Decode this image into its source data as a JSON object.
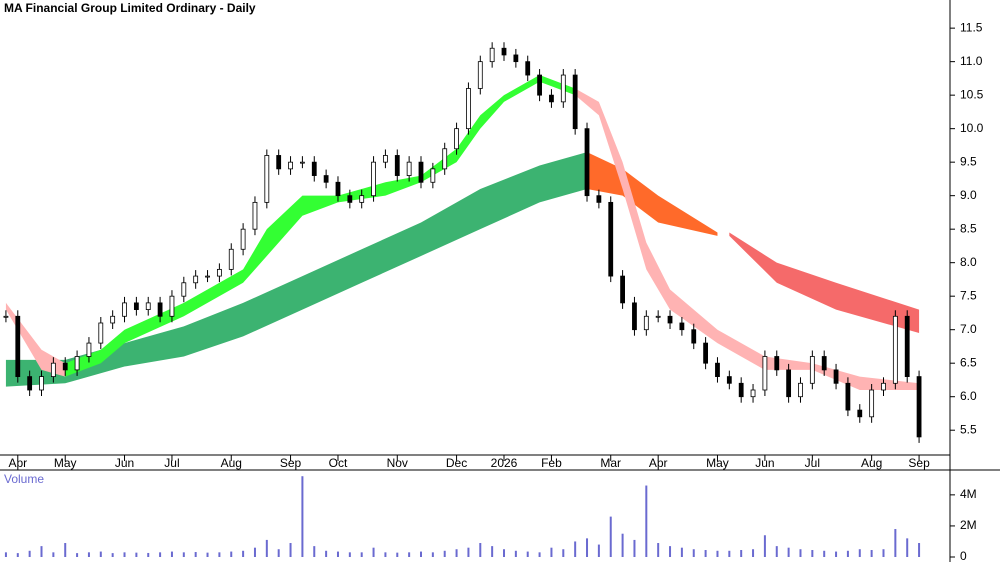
{
  "chart_data": [
    {
      "type": "price",
      "title": "MA Financial Group Limited Ordinary - Daily",
      "categories": [
        null,
        "Apr",
        null,
        null,
        null,
        "May",
        null,
        null,
        null,
        null,
        "Jun",
        null,
        null,
        null,
        "Jul",
        null,
        null,
        null,
        null,
        "Aug",
        null,
        null,
        null,
        null,
        "Sep",
        null,
        null,
        null,
        "Oct",
        null,
        null,
        null,
        null,
        "Nov",
        null,
        null,
        null,
        null,
        "Dec",
        null,
        null,
        null,
        "2026",
        null,
        null,
        null,
        "Feb",
        null,
        null,
        null,
        null,
        "Mar",
        null,
        null,
        null,
        "Apr",
        null,
        null,
        null,
        null,
        "May",
        null,
        null,
        null,
        "Jun",
        null,
        null,
        null,
        "Jul",
        null,
        null,
        null,
        null,
        "Aug",
        null,
        null,
        null,
        "Sep"
      ],
      "values": [
        7.2,
        6.3,
        6.1,
        6.3,
        6.5,
        6.4,
        6.6,
        6.8,
        7.1,
        7.2,
        7.4,
        7.3,
        7.4,
        7.2,
        7.5,
        7.7,
        7.8,
        7.8,
        7.9,
        8.2,
        8.5,
        8.9,
        9.6,
        9.4,
        9.5,
        9.5,
        9.3,
        9.2,
        9.0,
        8.9,
        9.0,
        9.5,
        9.6,
        9.3,
        9.5,
        9.2,
        9.4,
        9.7,
        10.0,
        10.6,
        11.0,
        11.2,
        11.1,
        11.0,
        10.8,
        10.5,
        10.4,
        10.8,
        10.0,
        9.0,
        8.9,
        7.8,
        7.4,
        7.0,
        7.2,
        7.2,
        7.1,
        7.0,
        6.8,
        6.5,
        6.3,
        6.2,
        6.0,
        6.1,
        6.6,
        6.4,
        6.0,
        6.2,
        6.6,
        6.4,
        6.2,
        5.8,
        5.7,
        6.1,
        6.2,
        7.2,
        6.3,
        5.4
      ],
      "ylim": [
        5.13,
        11.92
      ],
      "yticks": [
        5.5,
        {
          "value": 6,
          "label": "6.0"
        },
        6.5,
        {
          "value": 7,
          "label": "7.0"
        },
        7.5,
        {
          "value": 8,
          "label": "8.0"
        },
        8.5,
        {
          "value": 9,
          "label": "9.0"
        },
        9.5,
        {
          "value": 10,
          "label": "10.0"
        },
        10.5,
        {
          "value": 11,
          "label": "11.0"
        },
        11.5
      ],
      "bands": [
        {
          "color": "#3cb371",
          "x": [
            0,
            5,
            10,
            15,
            20,
            25,
            30,
            35,
            40,
            45,
            49
          ],
          "upper": [
            6.55,
            6.55,
            6.8,
            7.05,
            7.4,
            7.8,
            8.2,
            8.6,
            9.1,
            9.45,
            9.65
          ],
          "lower": [
            6.15,
            6.2,
            6.45,
            6.6,
            6.9,
            7.3,
            7.7,
            8.1,
            8.5,
            8.9,
            9.1
          ]
        },
        {
          "color": "#ff6a2a",
          "x": [
            49,
            52,
            55,
            60
          ],
          "upper": [
            9.65,
            9.4,
            9.0,
            8.45
          ],
          "lower": [
            9.1,
            9.0,
            8.6,
            8.4
          ]
        },
        {
          "color": "#f56a6a",
          "x": [
            61,
            65,
            70,
            77
          ],
          "upper": [
            8.45,
            8.0,
            7.7,
            7.3
          ],
          "lower": [
            8.4,
            7.7,
            7.3,
            6.95
          ]
        },
        {
          "color": "#ffb3b3",
          "x": [
            0,
            3,
            5
          ],
          "upper": [
            7.4,
            6.7,
            6.5
          ],
          "lower": [
            7.3,
            6.4,
            6.3
          ]
        },
        {
          "color": "#33ff33",
          "x": [
            5,
            8,
            10,
            15,
            20,
            22,
            25,
            28,
            32,
            35,
            38,
            40,
            42,
            45,
            48
          ],
          "upper": [
            6.5,
            6.7,
            7.0,
            7.4,
            7.9,
            8.5,
            9.0,
            9.0,
            9.2,
            9.3,
            9.7,
            10.2,
            10.5,
            10.8,
            10.6
          ],
          "lower": [
            6.3,
            6.5,
            6.8,
            7.2,
            7.7,
            8.1,
            8.7,
            8.9,
            9.0,
            9.2,
            9.5,
            10.0,
            10.4,
            10.7,
            10.5
          ]
        },
        {
          "color": "#ffb3b3",
          "x": [
            48,
            50,
            52,
            54,
            56,
            60,
            64,
            68,
            72,
            77
          ],
          "upper": [
            10.6,
            10.4,
            9.5,
            8.3,
            7.6,
            7.0,
            6.6,
            6.5,
            6.3,
            6.2
          ],
          "lower": [
            10.5,
            10.2,
            9.1,
            7.9,
            7.3,
            6.8,
            6.4,
            6.4,
            6.1,
            6.1
          ]
        }
      ]
    },
    {
      "type": "volume",
      "title": "Volume",
      "color": "#6a6ad0",
      "values": [
        300000,
        250000,
        400000,
        700000,
        300000,
        900000,
        250000,
        300000,
        350000,
        250000,
        300000,
        280000,
        260000,
        300000,
        350000,
        300000,
        320000,
        280000,
        300000,
        350000,
        400000,
        600000,
        1100000,
        500000,
        900000,
        5200000,
        700000,
        400000,
        350000,
        300000,
        300000,
        600000,
        300000,
        280000,
        300000,
        350000,
        300000,
        400000,
        500000,
        600000,
        900000,
        700000,
        500000,
        400000,
        350000,
        300000,
        600000,
        500000,
        1000000,
        1200000,
        800000,
        2600000,
        1500000,
        1100000,
        4600000,
        900000,
        700000,
        600000,
        500000,
        450000,
        400000,
        400000,
        450000,
        500000,
        1400000,
        700000,
        600000,
        500000,
        450000,
        400000,
        350000,
        400000,
        500000,
        450000,
        500000,
        1800000,
        1200000,
        900000
      ],
      "ylim": [
        0,
        5600000
      ],
      "yticks": [
        {
          "value": 0,
          "label": "0"
        },
        {
          "value": 2000000,
          "label": "2M"
        },
        {
          "value": 4000000,
          "label": "4M"
        }
      ]
    }
  ]
}
